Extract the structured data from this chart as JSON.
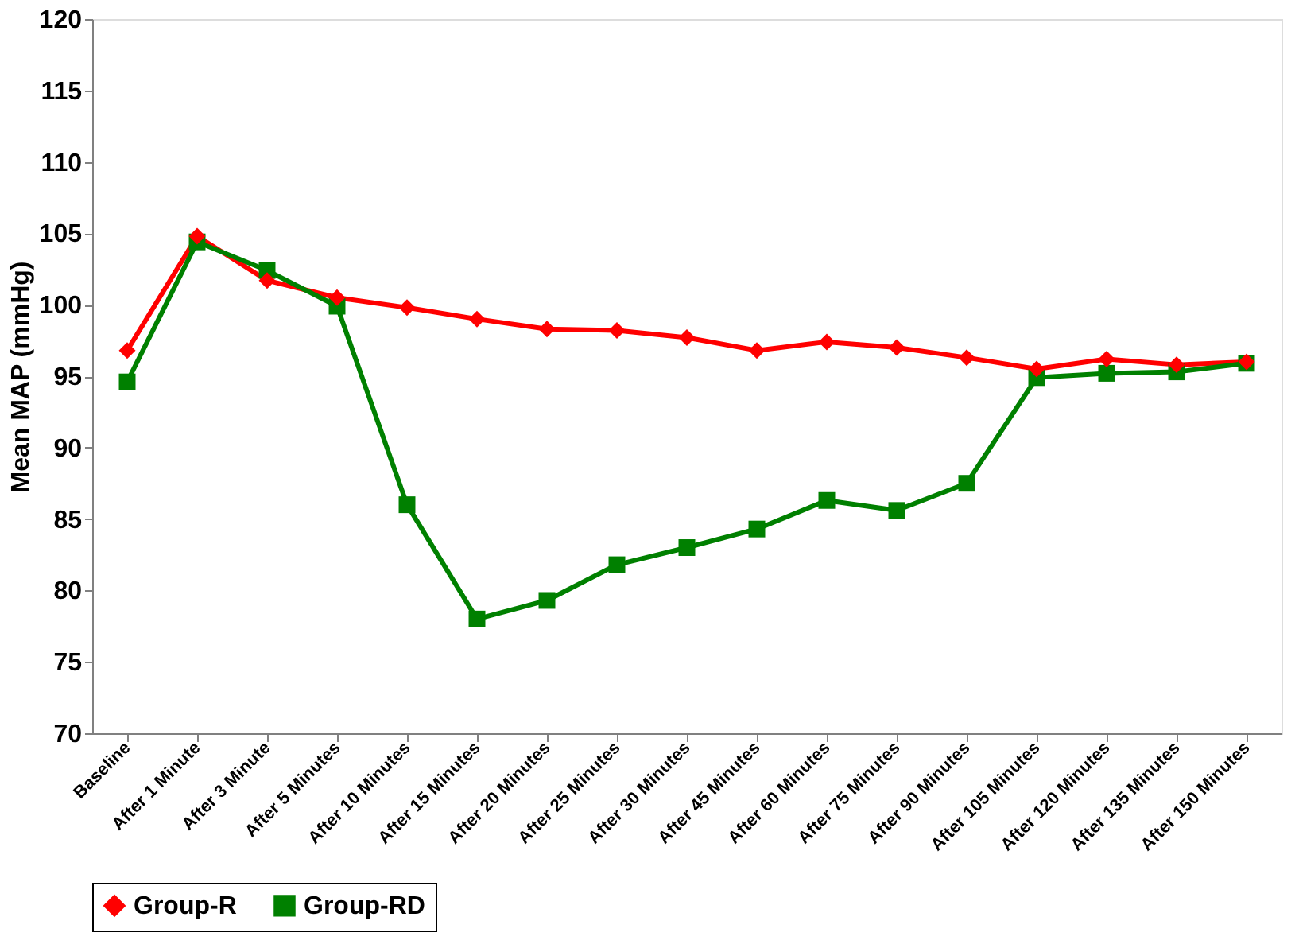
{
  "chart_data": {
    "type": "line",
    "ylabel": "Mean MAP (mmHg)",
    "categories": [
      "Baseline",
      "After 1 Minute",
      "After 3 Minute",
      "After 5 Minutes",
      "After 10 Minutes",
      "After 15 Minutes",
      "After 20 Minutes",
      "After 25 Minutes",
      "After 30 Minutes",
      "After 45 Minutes",
      "After 60 Minutes",
      "After 75 Minutes",
      "After 90 Minutes",
      "After 105 Minutes",
      "After 120 Minutes",
      "After 135 Minutes",
      "After 150 Minutes"
    ],
    "series": [
      {
        "name": "Group-R",
        "color": "#ff0000",
        "marker": "diamond",
        "values": [
          96.8,
          104.8,
          101.7,
          100.5,
          99.8,
          99.0,
          98.3,
          98.2,
          97.7,
          96.8,
          97.4,
          97.0,
          96.3,
          95.5,
          96.2,
          95.8,
          96.0
        ]
      },
      {
        "name": "Group-RD",
        "color": "#008000",
        "marker": "square",
        "values": [
          94.6,
          104.4,
          102.4,
          99.9,
          86.0,
          78.0,
          79.3,
          81.8,
          83.0,
          84.3,
          86.3,
          85.6,
          87.5,
          94.9,
          95.2,
          95.3,
          95.9
        ]
      }
    ],
    "ylim": [
      70,
      120
    ],
    "yticks": [
      70,
      75,
      80,
      85,
      90,
      95,
      100,
      105,
      110,
      115,
      120
    ],
    "grid": false,
    "legend": "bottom",
    "line_style": "solid"
  }
}
